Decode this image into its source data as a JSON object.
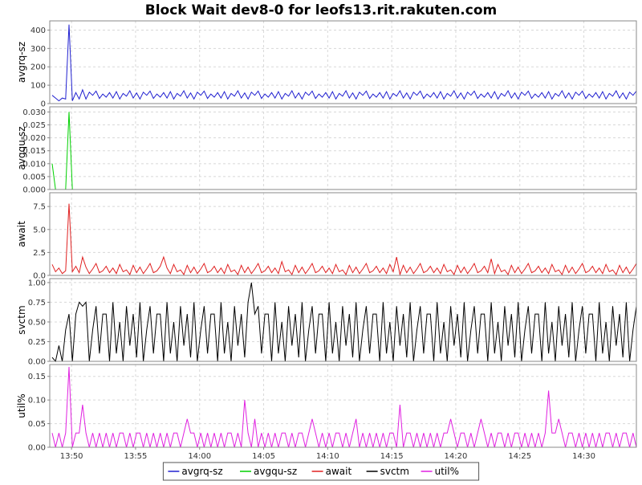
{
  "chart_data": {
    "type": "line",
    "title": "Block Wait dev8-0 for leofs13.rit.rakuten.com",
    "x_start": "13:48",
    "x_end": "14:34",
    "x_ticks": [
      "13:50",
      "13:55",
      "14:00",
      "14:05",
      "14:10",
      "14:15",
      "14:20",
      "14:25",
      "14:30"
    ],
    "grid": true,
    "legend_position": "bottom",
    "panels": [
      {
        "name": "avgrq-sz",
        "ylabel": "avgrq-sz",
        "color": "#2020d0",
        "ylim": [
          0,
          450
        ],
        "y_ticks": [
          "0",
          "100",
          "200",
          "300",
          "400"
        ],
        "pattern": [
          35,
          60,
          30,
          65,
          25,
          55,
          40,
          70,
          30,
          58,
          25,
          62,
          45,
          68,
          28,
          52
        ],
        "spikes": [
          [
            0,
            45
          ],
          [
            1,
            30
          ],
          [
            2,
            15
          ],
          [
            3,
            30
          ],
          [
            4,
            25
          ],
          [
            5,
            430
          ],
          [
            6,
            15
          ],
          [
            7,
            60
          ],
          [
            8,
            25
          ],
          [
            9,
            75
          ]
        ]
      },
      {
        "name": "avgqu-sz",
        "ylabel": "avgqu-sz",
        "color": "#00d000",
        "ylim": [
          0,
          0.032
        ],
        "y_ticks": [
          "0.000",
          "0.005",
          "0.010",
          "0.015",
          "0.020",
          "0.025",
          "0.030"
        ],
        "pattern": [
          0
        ],
        "spikes": [
          [
            0,
            0.01
          ],
          [
            1,
            0.0
          ],
          [
            2,
            0.0
          ],
          [
            3,
            0.0
          ],
          [
            4,
            0.0
          ],
          [
            5,
            0.03
          ],
          [
            6,
            0.0
          ]
        ]
      },
      {
        "name": "await",
        "ylabel": "await",
        "color": "#e02020",
        "ylim": [
          0,
          9
        ],
        "y_ticks": [
          "0.0",
          "2.5",
          "5.0",
          "7.5"
        ],
        "pattern": [
          1.0,
          0.3,
          0.8,
          0.2,
          1.2,
          0.4,
          0.6,
          0.1,
          1.1,
          0.3,
          0.9,
          0.2,
          0.7,
          1.3,
          0.3,
          0.5
        ],
        "spikes": [
          [
            0,
            1.2
          ],
          [
            1,
            0.4
          ],
          [
            2,
            0.8
          ],
          [
            3,
            0.2
          ],
          [
            4,
            0.5
          ],
          [
            5,
            7.8
          ],
          [
            6,
            0.4
          ],
          [
            7,
            1.0
          ],
          [
            8,
            0.3
          ],
          [
            9,
            2.0
          ],
          [
            33,
            2.0
          ],
          [
            68,
            1.5
          ],
          [
            102,
            2.0
          ],
          [
            130,
            1.8
          ]
        ]
      },
      {
        "name": "svctm",
        "ylabel": "svctm",
        "color": "#000000",
        "ylim": [
          0,
          1.05
        ],
        "y_ticks": [
          "0.00",
          "0.25",
          "0.50",
          "0.75",
          "1.00"
        ],
        "pattern": [
          0.6,
          0.0,
          0.75,
          0.1,
          0.5,
          0.0,
          0.7,
          0.2,
          0.6,
          0.05,
          0.75,
          0.0,
          0.4,
          0.7,
          0.1,
          0.6
        ],
        "spikes": [
          [
            0,
            0.05
          ],
          [
            1,
            0.0
          ],
          [
            2,
            0.2
          ],
          [
            3,
            0.0
          ],
          [
            4,
            0.4
          ],
          [
            5,
            0.6
          ],
          [
            6,
            0.0
          ],
          [
            7,
            0.6
          ],
          [
            8,
            0.75
          ],
          [
            9,
            0.7
          ],
          [
            59,
            1.0
          ],
          [
            60,
            0.6
          ]
        ]
      },
      {
        "name": "util%",
        "ylabel": "util%",
        "color": "#e020e0",
        "ylim": [
          0,
          0.175
        ],
        "y_ticks": [
          "0.00",
          "0.05",
          "0.10",
          "0.15"
        ],
        "pattern": [
          0.03,
          0.0,
          0.03,
          0.0,
          0.03,
          0.03,
          0.0,
          0.03,
          0.0,
          0.03,
          0.03,
          0.0,
          0.03,
          0.0,
          0.03,
          0.0
        ],
        "spikes": [
          [
            0,
            0.03
          ],
          [
            1,
            0.0
          ],
          [
            2,
            0.03
          ],
          [
            3,
            0.0
          ],
          [
            4,
            0.03
          ],
          [
            5,
            0.17
          ],
          [
            6,
            0.0
          ],
          [
            7,
            0.03
          ],
          [
            8,
            0.03
          ],
          [
            9,
            0.09
          ],
          [
            40,
            0.06
          ],
          [
            57,
            0.1
          ],
          [
            60,
            0.06
          ],
          [
            77,
            0.06
          ],
          [
            90,
            0.06
          ],
          [
            103,
            0.09
          ],
          [
            118,
            0.06
          ],
          [
            127,
            0.06
          ],
          [
            147,
            0.12
          ],
          [
            150,
            0.06
          ]
        ]
      }
    ],
    "legend": [
      "avgrq-sz",
      "avgqu-sz",
      "await",
      "svctm",
      "util%"
    ]
  }
}
